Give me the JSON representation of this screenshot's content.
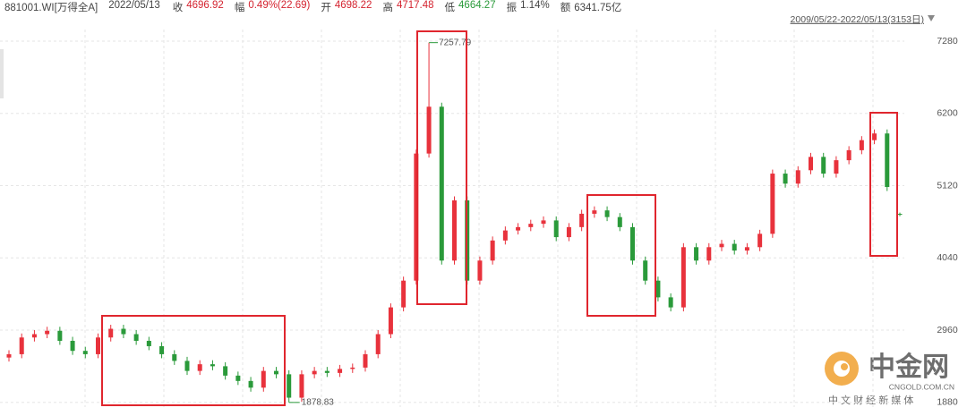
{
  "header": {
    "code": "881001.WI[万得全A]",
    "date": "2022/05/13",
    "fields": [
      {
        "label": "收",
        "value": "4696.92"
      },
      {
        "label": "幅",
        "value": "0.49%(22.69)"
      },
      {
        "label": "开",
        "value": "4698.22"
      },
      {
        "label": "高",
        "value": "4717.48"
      },
      {
        "label": "低",
        "value": "4664.27"
      },
      {
        "label": "振",
        "value": "1.14%"
      },
      {
        "label": "额",
        "value": "6341.75亿"
      }
    ]
  },
  "chart_data": {
    "type": "candlestick",
    "range_label": "2009/05/22-2022/05/13(3153日)",
    "up_color": "#e8323c",
    "down_color": "#2a9a3a",
    "max_label": 7257.79,
    "min_label": 1878.83,
    "ylim": [
      1810,
      7454
    ],
    "yticks": [
      1880,
      2960,
      4040,
      5120,
      6200,
      7280
    ],
    "grid": true,
    "series": [
      {
        "open": [
          2550,
          2600,
          2850,
          2900,
          2950,
          2800,
          2650,
          2600,
          2850,
          2980,
          2900,
          2800,
          2720,
          2600,
          2500,
          2350,
          2450,
          2420,
          2280,
          2200,
          2100,
          2350,
          2300,
          1950,
          2300,
          2350,
          2320,
          2380,
          2400,
          2600,
          2900,
          3300,
          3700,
          5600,
          6300,
          4000,
          4900,
          3700,
          4000,
          4300,
          4450,
          4500,
          4550,
          4600,
          4350,
          4500,
          4700,
          4750,
          4650,
          4500,
          4000,
          3700,
          3450,
          3300,
          4200,
          4000,
          4200,
          4250,
          4150,
          4200,
          4400,
          5300,
          5150,
          5350,
          5550,
          5300,
          5500,
          5650,
          5800,
          5900,
          4698.22
        ],
        "high": [
          2660,
          2910,
          2960,
          3010,
          3010,
          2860,
          2710,
          2910,
          3040,
          3040,
          2960,
          2860,
          2780,
          2660,
          2560,
          2510,
          2510,
          2480,
          2340,
          2260,
          2410,
          2410,
          2360,
          2360,
          2410,
          2410,
          2440,
          2460,
          2660,
          2960,
          3360,
          3760,
          5660,
          7257.79,
          6360,
          4960,
          4960,
          4060,
          4360,
          4510,
          4560,
          4610,
          4660,
          4660,
          4560,
          4760,
          4810,
          4810,
          4710,
          4560,
          4060,
          3760,
          3510,
          4260,
          4260,
          4260,
          4310,
          4310,
          4260,
          4460,
          5360,
          5360,
          5410,
          5610,
          5610,
          5560,
          5710,
          5860,
          5960,
          5960,
          4717.48
        ],
        "low": [
          2490,
          2540,
          2790,
          2840,
          2740,
          2590,
          2540,
          2540,
          2790,
          2840,
          2740,
          2660,
          2540,
          2440,
          2290,
          2290,
          2360,
          2220,
          2140,
          2040,
          2040,
          2240,
          1878.83,
          1890,
          2240,
          2260,
          2260,
          2320,
          2340,
          2540,
          2840,
          3240,
          3640,
          5540,
          3940,
          3940,
          3640,
          3640,
          3940,
          4240,
          4390,
          4440,
          4490,
          4290,
          4290,
          4440,
          4640,
          4590,
          4440,
          3940,
          3640,
          3390,
          3240,
          3240,
          3940,
          3940,
          4140,
          4090,
          4090,
          4140,
          4340,
          5090,
          5090,
          5290,
          5240,
          5240,
          5440,
          5590,
          5740,
          5040,
          4664.27
        ],
        "close": [
          2600,
          2850,
          2900,
          2950,
          2800,
          2650,
          2600,
          2850,
          2980,
          2900,
          2800,
          2720,
          2600,
          2500,
          2350,
          2450,
          2420,
          2280,
          2200,
          2100,
          2350,
          2300,
          1950,
          2300,
          2350,
          2320,
          2380,
          2400,
          2600,
          2900,
          3300,
          3700,
          5600,
          6300,
          4000,
          4900,
          3700,
          4000,
          4300,
          4450,
          4500,
          4550,
          4600,
          4350,
          4500,
          4700,
          4750,
          4650,
          4500,
          4000,
          3700,
          3450,
          3300,
          4200,
          4000,
          4200,
          4250,
          4150,
          4200,
          4400,
          5300,
          5150,
          5350,
          5550,
          5300,
          5500,
          5650,
          5800,
          5900,
          5100,
          4696.92
        ]
      }
    ]
  },
  "watermark": {
    "brand": "中金网",
    "site": "CNGOLD.COM.CN",
    "slogan": "中 文 财 经 新 媒 体"
  }
}
